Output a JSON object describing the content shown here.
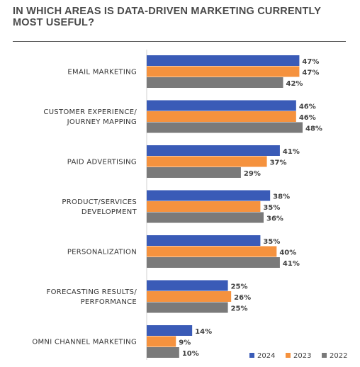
{
  "chart_data": {
    "type": "bar",
    "orientation": "horizontal",
    "title": "IN WHICH AREAS IS DATA-DRIVEN MARKETING CURRENTLY MOST USEFUL?",
    "categories": [
      [
        "EMAIL MARKETING"
      ],
      [
        "CUSTOMER EXPERIENCE/",
        "JOURNEY MAPPING"
      ],
      [
        "PAID ADVERTISING"
      ],
      [
        "PRODUCT/SERVICES",
        "DEVELOPMENT"
      ],
      [
        "PERSONALIZATION"
      ],
      [
        "FORECASTING RESULTS/",
        "PERFORMANCE"
      ],
      [
        "OMNI CHANNEL MARKETING"
      ]
    ],
    "series": [
      {
        "name": "2024",
        "color": "#3a5bb7",
        "values": [
          47,
          46,
          41,
          38,
          35,
          25,
          14
        ]
      },
      {
        "name": "2023",
        "color": "#f5923e",
        "values": [
          47,
          46,
          37,
          35,
          40,
          26,
          9
        ]
      },
      {
        "name": "2022",
        "color": "#7a7a7a",
        "values": [
          42,
          48,
          29,
          36,
          41,
          25,
          10
        ]
      }
    ],
    "value_suffix": "%",
    "xlim": [
      0,
      48
    ],
    "grid": false,
    "legend": "bottom-right"
  }
}
